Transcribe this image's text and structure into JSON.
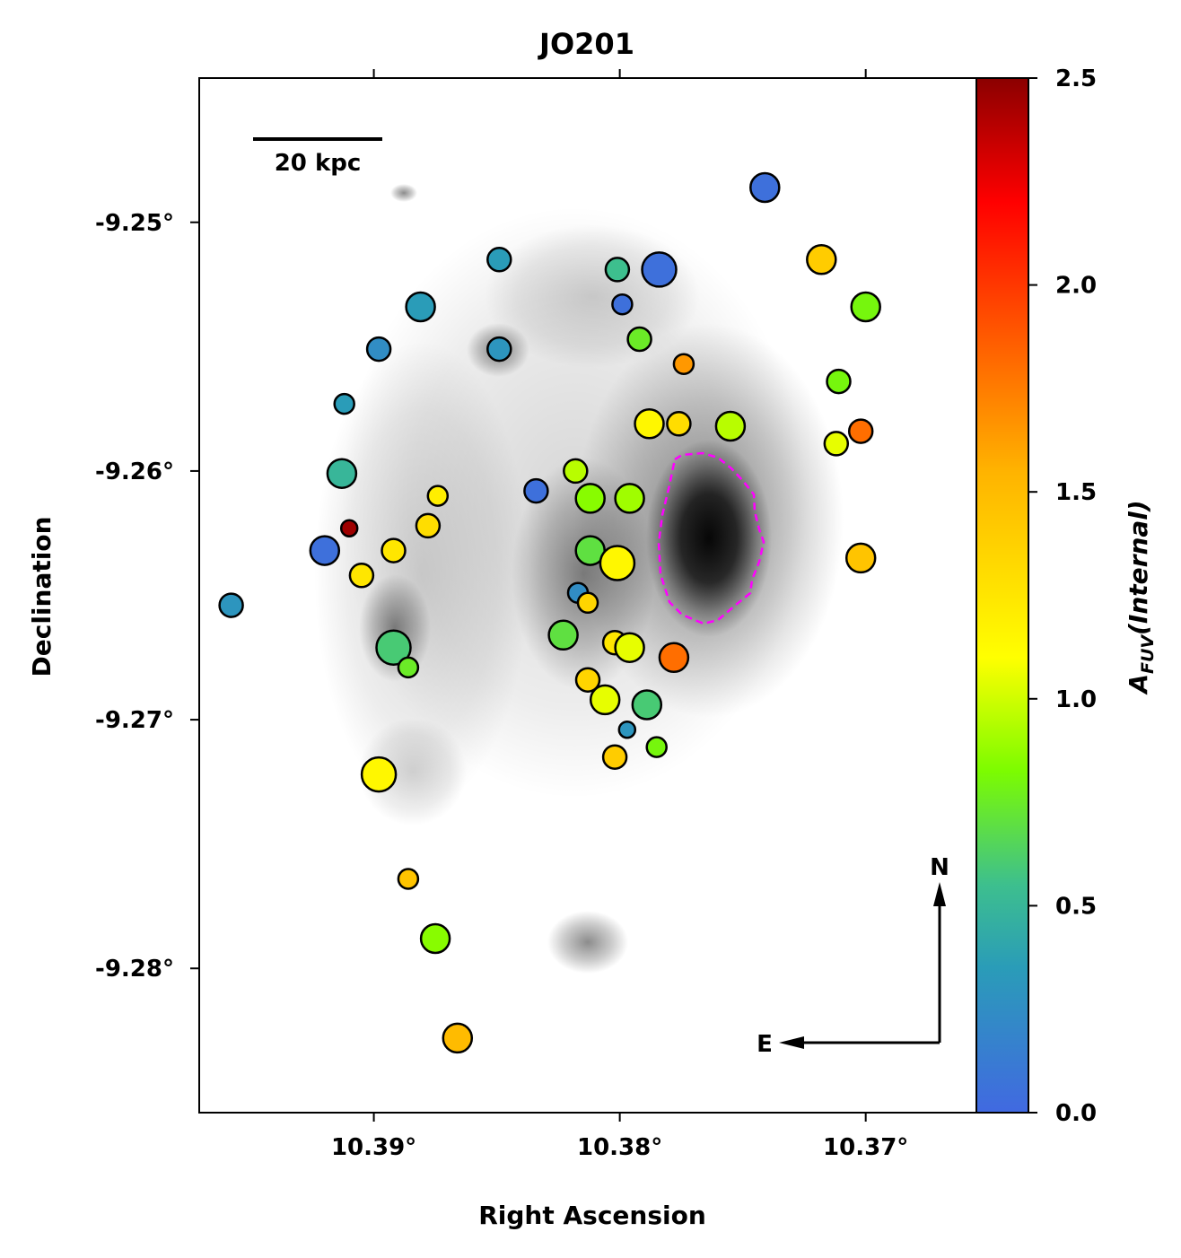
{
  "chart_data": {
    "type": "scatter",
    "title": "JO201",
    "xlabel": "Right Ascension",
    "ylabel": "Declination",
    "x_ticks": [
      {
        "value": 10.39,
        "label": "10.39°"
      },
      {
        "value": 10.38,
        "label": "10.38°"
      },
      {
        "value": 10.37,
        "label": "10.37°"
      }
    ],
    "y_ticks": [
      {
        "value": -9.25,
        "label": "-9.25°"
      },
      {
        "value": -9.26,
        "label": "-9.26°"
      },
      {
        "value": -9.27,
        "label": "-9.27°"
      },
      {
        "value": -9.28,
        "label": "-9.28°"
      }
    ],
    "xlim": [
      10.3971,
      10.3655
    ],
    "ylim": [
      -9.2858,
      -9.2442
    ],
    "x_inverted": true,
    "colorbar": {
      "label": "A_FUV(Internal)",
      "label_main": "A",
      "label_sub": "FUV",
      "label_paren": "(Internal)",
      "range": [
        0,
        2.5
      ],
      "ticks": [
        "0.0",
        "0.5",
        "1.0",
        "1.5",
        "2.0",
        "2.5"
      ],
      "colormap": "blue-green-yellow-red"
    },
    "scale_bar_label": "20 kpc",
    "compass": {
      "north": "N",
      "east": "E"
    },
    "galaxy_contour_color": "#ff00ff",
    "points": [
      {
        "ra": 10.3741,
        "dec": -9.2486,
        "a": 0.05,
        "s": "l"
      },
      {
        "ra": 10.3849,
        "dec": -9.2515,
        "a": 0.35,
        "s": "m"
      },
      {
        "ra": 10.3801,
        "dec": -9.2519,
        "a": 0.55,
        "s": "m"
      },
      {
        "ra": 10.3784,
        "dec": -9.2519,
        "a": 0.05,
        "s": "xl"
      },
      {
        "ra": 10.3718,
        "dec": -9.2515,
        "a": 1.4,
        "s": "l"
      },
      {
        "ra": 10.3881,
        "dec": -9.2534,
        "a": 0.35,
        "s": "l"
      },
      {
        "ra": 10.3799,
        "dec": -9.2533,
        "a": 0.05,
        "s": "s"
      },
      {
        "ra": 10.37,
        "dec": -9.2534,
        "a": 0.8,
        "s": "l"
      },
      {
        "ra": 10.3792,
        "dec": -9.2547,
        "a": 0.75,
        "s": "m"
      },
      {
        "ra": 10.3849,
        "dec": -9.2551,
        "a": 0.3,
        "s": "m"
      },
      {
        "ra": 10.3898,
        "dec": -9.2551,
        "a": 0.25,
        "s": "m"
      },
      {
        "ra": 10.3774,
        "dec": -9.2557,
        "a": 1.65,
        "s": "s"
      },
      {
        "ra": 10.3711,
        "dec": -9.2564,
        "a": 0.8,
        "s": "m"
      },
      {
        "ra": 10.3912,
        "dec": -9.2573,
        "a": 0.35,
        "s": "s"
      },
      {
        "ra": 10.3788,
        "dec": -9.2581,
        "a": 1.15,
        "s": "l"
      },
      {
        "ra": 10.3776,
        "dec": -9.2581,
        "a": 1.3,
        "s": "m"
      },
      {
        "ra": 10.3755,
        "dec": -9.2582,
        "a": 0.95,
        "s": "l"
      },
      {
        "ra": 10.3712,
        "dec": -9.2589,
        "a": 1.05,
        "s": "m"
      },
      {
        "ra": 10.3702,
        "dec": -9.2584,
        "a": 1.8,
        "s": "m"
      },
      {
        "ra": 10.3818,
        "dec": -9.26,
        "a": 0.95,
        "s": "m"
      },
      {
        "ra": 10.3913,
        "dec": -9.2601,
        "a": 0.5,
        "s": "l"
      },
      {
        "ra": 10.3834,
        "dec": -9.2608,
        "a": 0.05,
        "s": "m"
      },
      {
        "ra": 10.3812,
        "dec": -9.2611,
        "a": 0.85,
        "s": "l"
      },
      {
        "ra": 10.3796,
        "dec": -9.2611,
        "a": 0.9,
        "s": "l"
      },
      {
        "ra": 10.3874,
        "dec": -9.261,
        "a": 1.2,
        "s": "s"
      },
      {
        "ra": 10.3878,
        "dec": -9.2622,
        "a": 1.3,
        "s": "m"
      },
      {
        "ra": 10.391,
        "dec": -9.2623,
        "a": 2.45,
        "s": "xs"
      },
      {
        "ra": 10.392,
        "dec": -9.2632,
        "a": 0.05,
        "s": "l"
      },
      {
        "ra": 10.3892,
        "dec": -9.2632,
        "a": 1.25,
        "s": "m"
      },
      {
        "ra": 10.3812,
        "dec": -9.2632,
        "a": 0.7,
        "s": "l"
      },
      {
        "ra": 10.3801,
        "dec": -9.2637,
        "a": 1.15,
        "s": "xl"
      },
      {
        "ra": 10.3702,
        "dec": -9.2635,
        "a": 1.45,
        "s": "l"
      },
      {
        "ra": 10.3905,
        "dec": -9.2642,
        "a": 1.25,
        "s": "m"
      },
      {
        "ra": 10.3817,
        "dec": -9.2649,
        "a": 0.25,
        "s": "s"
      },
      {
        "ra": 10.3813,
        "dec": -9.2653,
        "a": 1.35,
        "s": "s"
      },
      {
        "ra": 10.3958,
        "dec": -9.2654,
        "a": 0.3,
        "s": "m"
      },
      {
        "ra": 10.3823,
        "dec": -9.2666,
        "a": 0.7,
        "s": "l"
      },
      {
        "ra": 10.3802,
        "dec": -9.2669,
        "a": 1.25,
        "s": "m"
      },
      {
        "ra": 10.3796,
        "dec": -9.2671,
        "a": 1.05,
        "s": "l"
      },
      {
        "ra": 10.3892,
        "dec": -9.2671,
        "a": 0.6,
        "s": "xl"
      },
      {
        "ra": 10.3778,
        "dec": -9.2675,
        "a": 1.8,
        "s": "l"
      },
      {
        "ra": 10.3886,
        "dec": -9.2679,
        "a": 0.75,
        "s": "s"
      },
      {
        "ra": 10.3813,
        "dec": -9.2684,
        "a": 1.35,
        "s": "m"
      },
      {
        "ra": 10.3806,
        "dec": -9.2692,
        "a": 1.05,
        "s": "l"
      },
      {
        "ra": 10.3789,
        "dec": -9.2694,
        "a": 0.6,
        "s": "l"
      },
      {
        "ra": 10.3797,
        "dec": -9.2704,
        "a": 0.3,
        "s": "xs"
      },
      {
        "ra": 10.3785,
        "dec": -9.2711,
        "a": 0.8,
        "s": "s"
      },
      {
        "ra": 10.3802,
        "dec": -9.2715,
        "a": 1.4,
        "s": "m"
      },
      {
        "ra": 10.3898,
        "dec": -9.2722,
        "a": 1.15,
        "s": "xl"
      },
      {
        "ra": 10.3886,
        "dec": -9.2764,
        "a": 1.45,
        "s": "s"
      },
      {
        "ra": 10.3875,
        "dec": -9.2788,
        "a": 0.85,
        "s": "l"
      },
      {
        "ra": 10.3866,
        "dec": -9.2828,
        "a": 1.5,
        "s": "l"
      }
    ]
  }
}
